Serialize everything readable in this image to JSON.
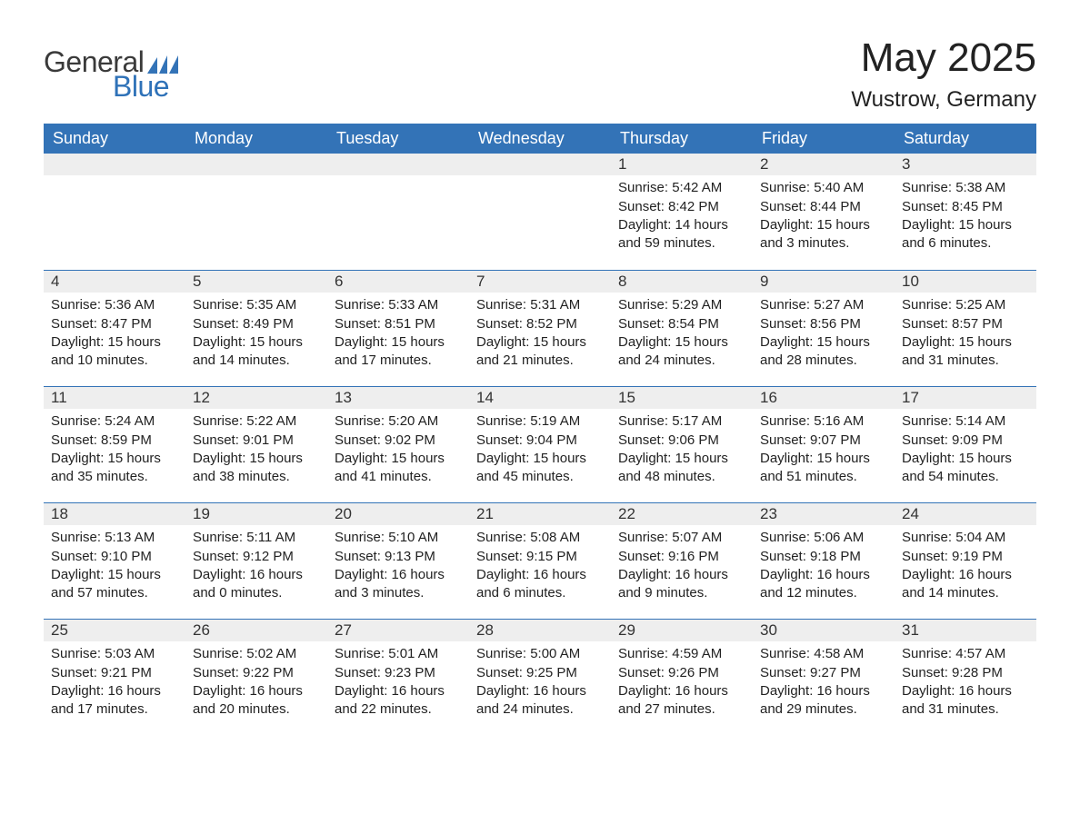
{
  "logo": {
    "general": "General",
    "blue": "Blue",
    "flag_color": "#3373b7"
  },
  "title": "May 2025",
  "location": "Wustrow, Germany",
  "header_bg": "#3373b7",
  "header_fg": "#ffffff",
  "daynum_bg": "#eeeeee",
  "divider_color": "#3373b7",
  "text_color": "#222222",
  "weekdays": [
    "Sunday",
    "Monday",
    "Tuesday",
    "Wednesday",
    "Thursday",
    "Friday",
    "Saturday"
  ],
  "weeks": [
    [
      null,
      null,
      null,
      null,
      {
        "n": "1",
        "sunrise": "5:42 AM",
        "sunset": "8:42 PM",
        "daylight": "14 hours and 59 minutes."
      },
      {
        "n": "2",
        "sunrise": "5:40 AM",
        "sunset": "8:44 PM",
        "daylight": "15 hours and 3 minutes."
      },
      {
        "n": "3",
        "sunrise": "5:38 AM",
        "sunset": "8:45 PM",
        "daylight": "15 hours and 6 minutes."
      }
    ],
    [
      {
        "n": "4",
        "sunrise": "5:36 AM",
        "sunset": "8:47 PM",
        "daylight": "15 hours and 10 minutes."
      },
      {
        "n": "5",
        "sunrise": "5:35 AM",
        "sunset": "8:49 PM",
        "daylight": "15 hours and 14 minutes."
      },
      {
        "n": "6",
        "sunrise": "5:33 AM",
        "sunset": "8:51 PM",
        "daylight": "15 hours and 17 minutes."
      },
      {
        "n": "7",
        "sunrise": "5:31 AM",
        "sunset": "8:52 PM",
        "daylight": "15 hours and 21 minutes."
      },
      {
        "n": "8",
        "sunrise": "5:29 AM",
        "sunset": "8:54 PM",
        "daylight": "15 hours and 24 minutes."
      },
      {
        "n": "9",
        "sunrise": "5:27 AM",
        "sunset": "8:56 PM",
        "daylight": "15 hours and 28 minutes."
      },
      {
        "n": "10",
        "sunrise": "5:25 AM",
        "sunset": "8:57 PM",
        "daylight": "15 hours and 31 minutes."
      }
    ],
    [
      {
        "n": "11",
        "sunrise": "5:24 AM",
        "sunset": "8:59 PM",
        "daylight": "15 hours and 35 minutes."
      },
      {
        "n": "12",
        "sunrise": "5:22 AM",
        "sunset": "9:01 PM",
        "daylight": "15 hours and 38 minutes."
      },
      {
        "n": "13",
        "sunrise": "5:20 AM",
        "sunset": "9:02 PM",
        "daylight": "15 hours and 41 minutes."
      },
      {
        "n": "14",
        "sunrise": "5:19 AM",
        "sunset": "9:04 PM",
        "daylight": "15 hours and 45 minutes."
      },
      {
        "n": "15",
        "sunrise": "5:17 AM",
        "sunset": "9:06 PM",
        "daylight": "15 hours and 48 minutes."
      },
      {
        "n": "16",
        "sunrise": "5:16 AM",
        "sunset": "9:07 PM",
        "daylight": "15 hours and 51 minutes."
      },
      {
        "n": "17",
        "sunrise": "5:14 AM",
        "sunset": "9:09 PM",
        "daylight": "15 hours and 54 minutes."
      }
    ],
    [
      {
        "n": "18",
        "sunrise": "5:13 AM",
        "sunset": "9:10 PM",
        "daylight": "15 hours and 57 minutes."
      },
      {
        "n": "19",
        "sunrise": "5:11 AM",
        "sunset": "9:12 PM",
        "daylight": "16 hours and 0 minutes."
      },
      {
        "n": "20",
        "sunrise": "5:10 AM",
        "sunset": "9:13 PM",
        "daylight": "16 hours and 3 minutes."
      },
      {
        "n": "21",
        "sunrise": "5:08 AM",
        "sunset": "9:15 PM",
        "daylight": "16 hours and 6 minutes."
      },
      {
        "n": "22",
        "sunrise": "5:07 AM",
        "sunset": "9:16 PM",
        "daylight": "16 hours and 9 minutes."
      },
      {
        "n": "23",
        "sunrise": "5:06 AM",
        "sunset": "9:18 PM",
        "daylight": "16 hours and 12 minutes."
      },
      {
        "n": "24",
        "sunrise": "5:04 AM",
        "sunset": "9:19 PM",
        "daylight": "16 hours and 14 minutes."
      }
    ],
    [
      {
        "n": "25",
        "sunrise": "5:03 AM",
        "sunset": "9:21 PM",
        "daylight": "16 hours and 17 minutes."
      },
      {
        "n": "26",
        "sunrise": "5:02 AM",
        "sunset": "9:22 PM",
        "daylight": "16 hours and 20 minutes."
      },
      {
        "n": "27",
        "sunrise": "5:01 AM",
        "sunset": "9:23 PM",
        "daylight": "16 hours and 22 minutes."
      },
      {
        "n": "28",
        "sunrise": "5:00 AM",
        "sunset": "9:25 PM",
        "daylight": "16 hours and 24 minutes."
      },
      {
        "n": "29",
        "sunrise": "4:59 AM",
        "sunset": "9:26 PM",
        "daylight": "16 hours and 27 minutes."
      },
      {
        "n": "30",
        "sunrise": "4:58 AM",
        "sunset": "9:27 PM",
        "daylight": "16 hours and 29 minutes."
      },
      {
        "n": "31",
        "sunrise": "4:57 AM",
        "sunset": "9:28 PM",
        "daylight": "16 hours and 31 minutes."
      }
    ]
  ],
  "labels": {
    "sunrise": "Sunrise: ",
    "sunset": "Sunset: ",
    "daylight": "Daylight: "
  }
}
